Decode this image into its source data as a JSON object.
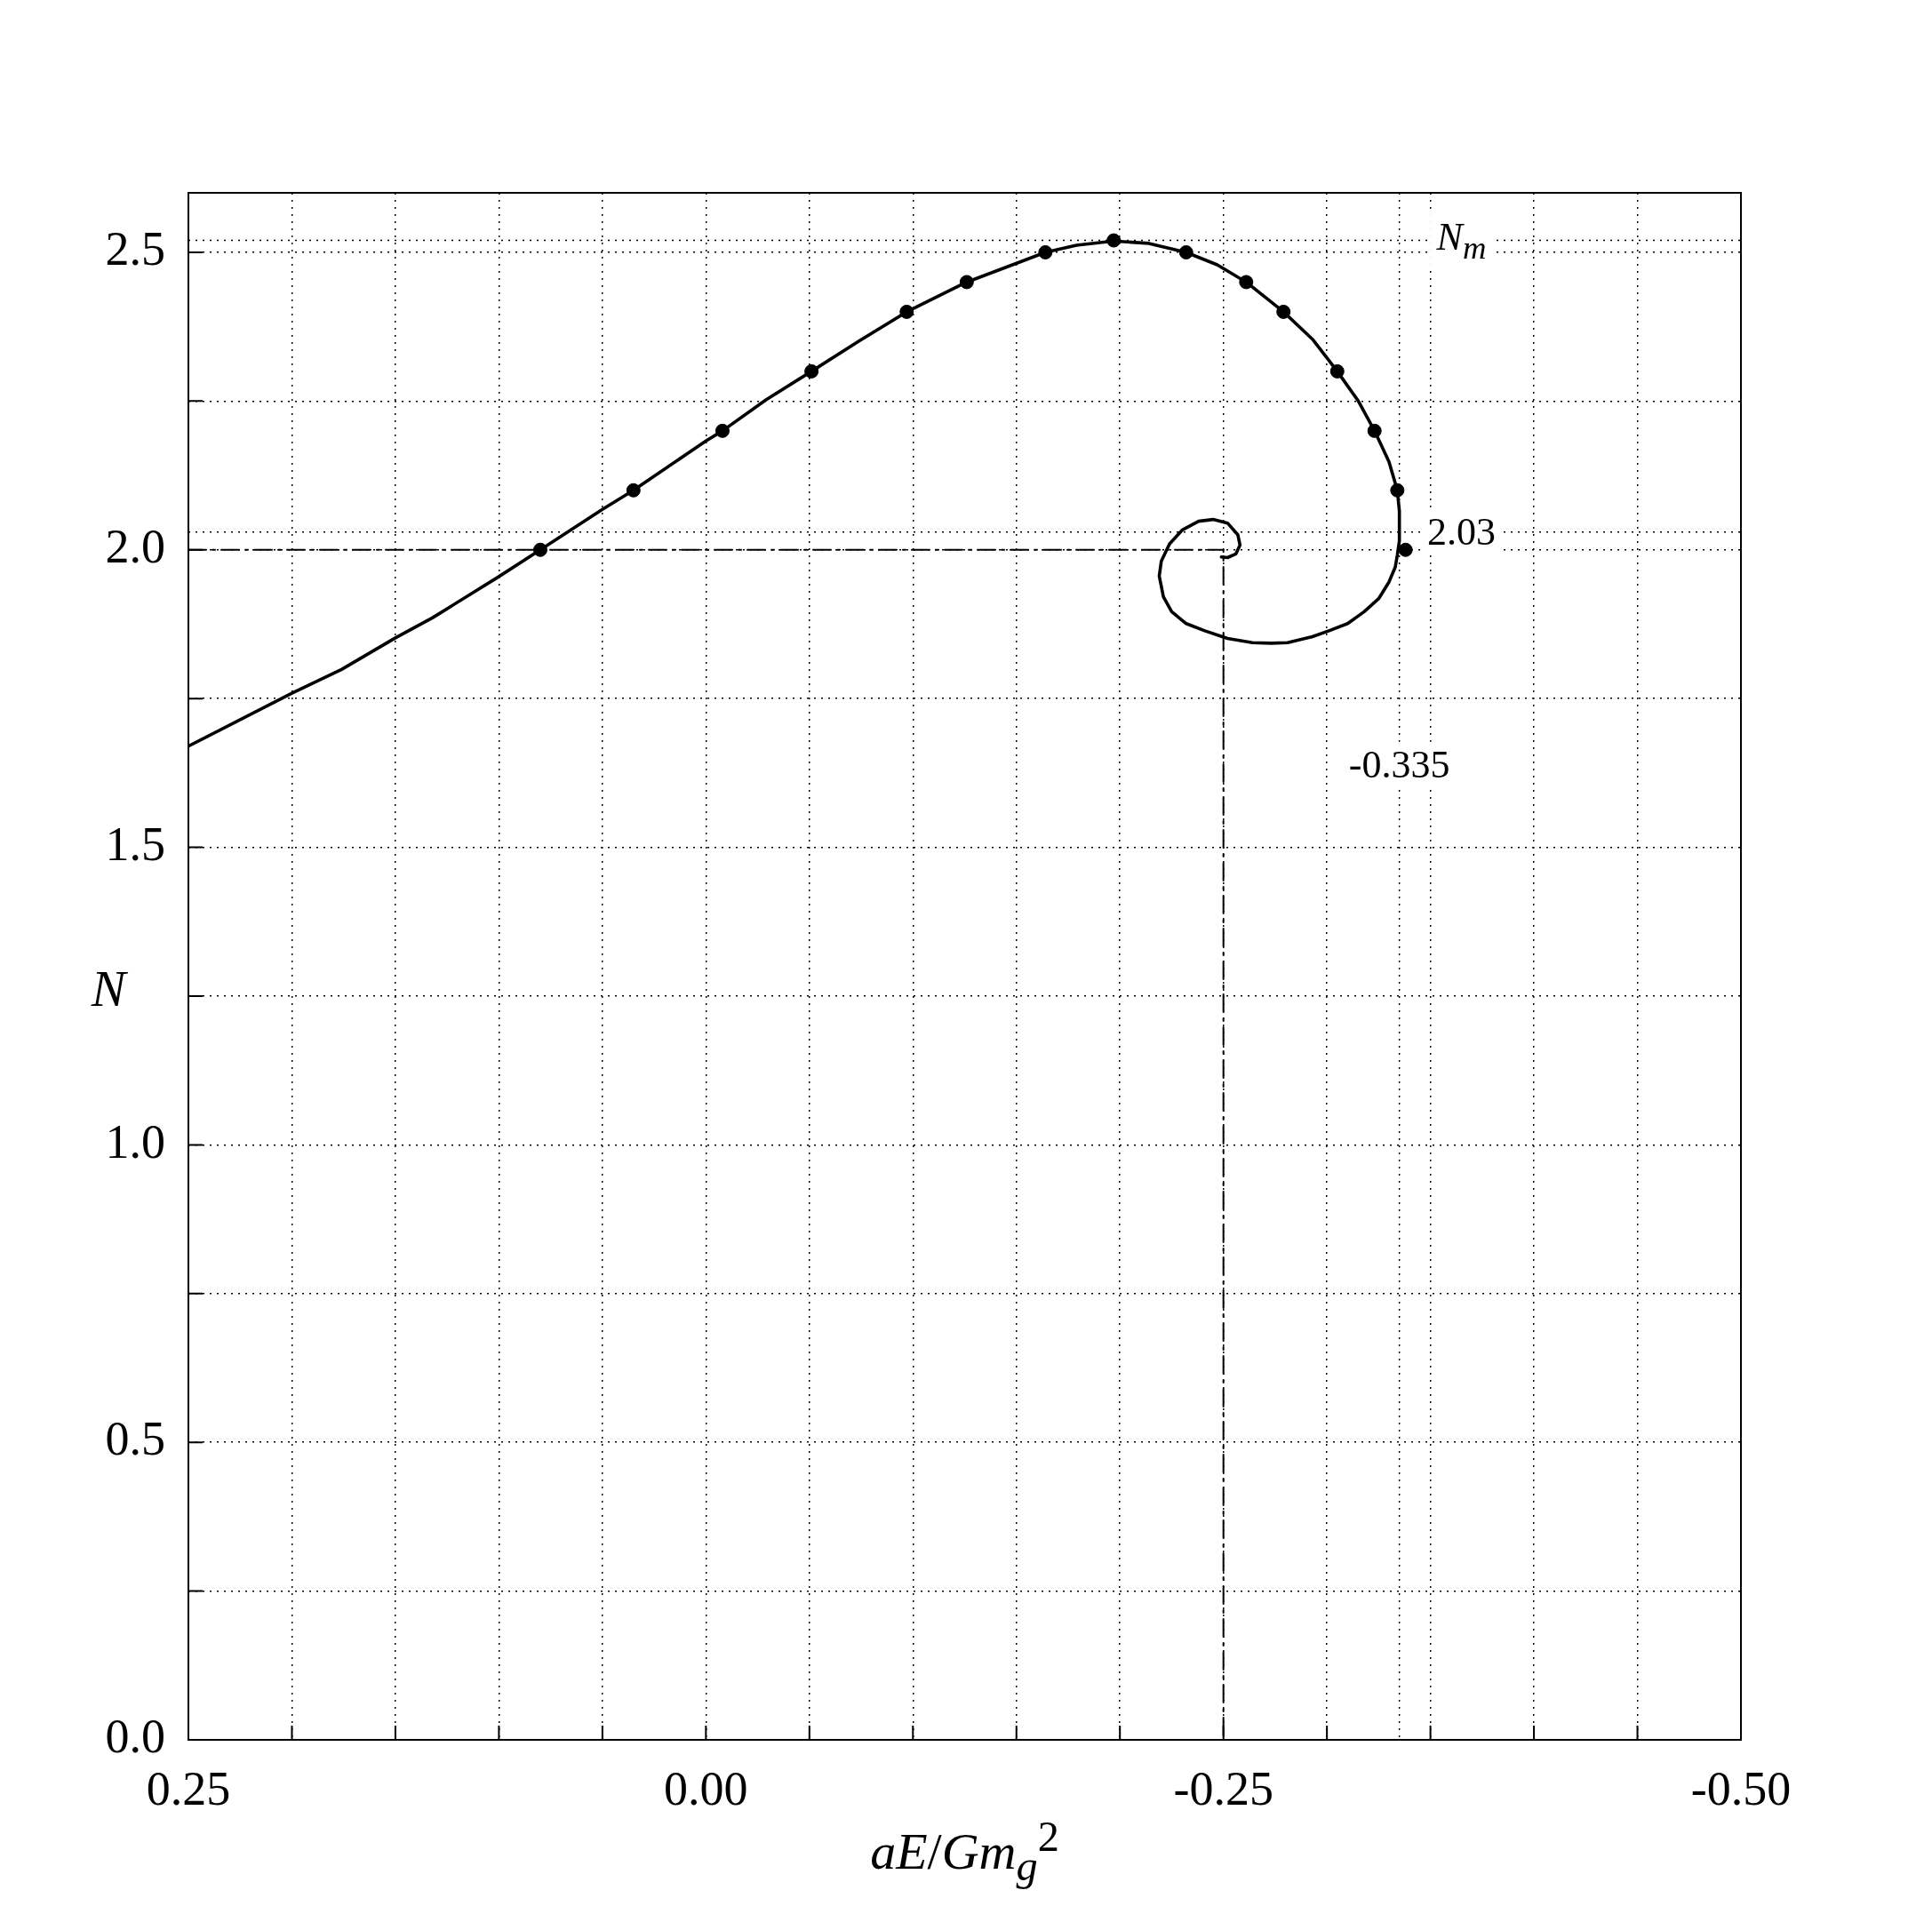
{
  "chart_data": {
    "type": "line",
    "xlabel": "aE/Gm$_{g}$$^{2}$",
    "ylabel": "N",
    "xlim": [
      0.25,
      -0.5
    ],
    "xticks": [
      0.25,
      {
        "value": 0.2,
        "label": null
      },
      {
        "value": 0.15,
        "label": null
      },
      {
        "value": 0.1,
        "label": null
      },
      {
        "value": 0.05,
        "label": null
      },
      {
        "value": 0,
        "label": "0.00"
      },
      {
        "value": -0.05,
        "label": null
      },
      {
        "value": -0.1,
        "label": null
      },
      {
        "value": -0.15,
        "label": null
      },
      {
        "value": -0.2,
        "label": null
      },
      {
        "value": -0.25,
        "label": "-0.25"
      },
      {
        "value": -0.3,
        "label": null
      },
      {
        "value": -0.35,
        "label": null
      },
      {
        "value": -0.4,
        "label": null
      },
      {
        "value": -0.45,
        "label": null
      },
      {
        "value": -0.5,
        "label": "-0.50"
      }
    ],
    "ylim": [
      0,
      2.6
    ],
    "yticks": [
      {
        "value": 0,
        "label": "0.0"
      },
      {
        "value": 0.25,
        "label": null
      },
      0.5,
      {
        "value": 0.75,
        "label": null
      },
      {
        "value": 1,
        "label": "1.0"
      },
      {
        "value": 1.25,
        "label": null
      },
      1.5,
      {
        "value": 1.75,
        "label": null
      },
      {
        "value": 2,
        "label": "2.0"
      },
      {
        "value": 2.25,
        "label": null
      },
      2.5
    ],
    "grid": true,
    "ref_lines": [
      {
        "axis": "y",
        "value": 2.52,
        "label": "N$_{m}$",
        "line_style": "dotted",
        "color": "#000000"
      },
      {
        "axis": "y",
        "value": 2.03,
        "label": "2.03",
        "line_style": "dotted",
        "color": "#000000"
      },
      {
        "axis": "x",
        "value": -0.335,
        "label": "-0.335",
        "line_style": "dotted",
        "color": "#000000"
      }
    ],
    "series": [
      {
        "type": "line",
        "color": "#000000",
        "marker": "none",
        "line_style": "solid",
        "x": [
          0.25,
          0.2,
          0.176,
          0.15,
          0.132,
          0.1,
          0.08,
          0.05,
          0.035,
          0.0,
          -0.008,
          -0.029,
          -0.051,
          -0.074,
          -0.097,
          -0.126,
          -0.164,
          -0.179,
          -0.197,
          -0.214,
          -0.232,
          -0.247,
          -0.261,
          -0.279,
          -0.293,
          -0.305,
          -0.315,
          -0.323,
          -0.33,
          -0.334,
          -0.335,
          -0.335,
          -0.334,
          -0.333,
          -0.33,
          -0.325,
          -0.318,
          -0.31,
          -0.301,
          -0.293,
          -0.281,
          -0.273,
          -0.264,
          -0.252,
          -0.241,
          -0.232,
          -0.225,
          -0.221,
          -0.219,
          -0.22,
          -0.224,
          -0.23,
          -0.238,
          -0.245,
          -0.252,
          -0.257,
          -0.258,
          -0.256,
          -0.252,
          -0.249
        ],
        "values": [
          1.67,
          1.759,
          1.799,
          1.852,
          1.886,
          1.955,
          2.0,
          2.068,
          2.1,
          2.183,
          2.2,
          2.252,
          2.3,
          2.351,
          2.4,
          2.45,
          2.5,
          2.512,
          2.519,
          2.515,
          2.5,
          2.479,
          2.45,
          2.4,
          2.354,
          2.3,
          2.251,
          2.2,
          2.148,
          2.1,
          2.065,
          2.015,
          1.991,
          1.971,
          1.946,
          1.918,
          1.896,
          1.876,
          1.864,
          1.854,
          1.844,
          1.843,
          1.844,
          1.851,
          1.864,
          1.876,
          1.896,
          1.921,
          1.956,
          1.981,
          2.01,
          2.033,
          2.048,
          2.051,
          2.045,
          2.025,
          2.008,
          1.993,
          1.987,
          1.988
        ]
      },
      {
        "type": "scatter",
        "color": "#000000",
        "marker": "circle",
        "x": [
          0.08,
          0.035,
          -0.008,
          -0.051,
          -0.097,
          -0.126,
          -0.164,
          -0.197,
          -0.232,
          -0.261,
          -0.279,
          -0.305,
          -0.323,
          -0.334,
          -0.338
        ],
        "values": [
          2.0,
          2.1,
          2.2,
          2.3,
          2.4,
          2.45,
          2.5,
          2.52,
          2.5,
          2.45,
          2.4,
          2.3,
          2.2,
          2.1,
          2.0
        ]
      },
      {
        "type": "line",
        "color": "#000000",
        "marker": "none",
        "line_style": "dashed",
        "x": [
          0.25,
          -0.25,
          -0.25
        ],
        "values": [
          2.0,
          2.0,
          0
        ]
      }
    ]
  }
}
